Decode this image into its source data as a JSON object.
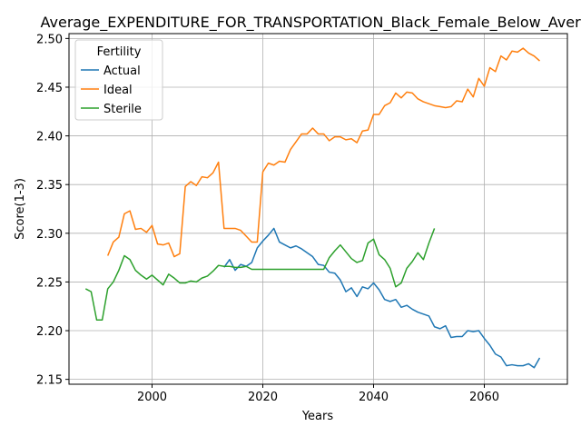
{
  "chart_data": {
    "type": "line",
    "title": "Average_EXPENDITURE_FOR_TRANSPORTATION_Black_Female_Below_Average",
    "xlabel": "Years",
    "ylabel": "Score(1-3)",
    "xlim": [
      1985,
      2075
    ],
    "ylim": [
      2.145,
      2.505
    ],
    "xticks": [
      2000,
      2020,
      2040,
      2060
    ],
    "yticks": [
      2.15,
      2.2,
      2.25,
      2.3,
      2.35,
      2.4,
      2.45,
      2.5
    ],
    "ytick_labels": [
      "2.15",
      "2.20",
      "2.25",
      "2.30",
      "2.35",
      "2.40",
      "2.45",
      "2.50"
    ],
    "grid": true,
    "legend": {
      "title": "Fertility",
      "placement": "upper-left"
    },
    "series": [
      {
        "name": "Actual",
        "color": "#1f77b4",
        "x": [
          2013,
          2014,
          2015,
          2016,
          2017,
          2018,
          2019,
          2020,
          2021,
          2022,
          2023,
          2024,
          2025,
          2026,
          2027,
          2028,
          2029,
          2030,
          2031,
          2032,
          2033,
          2034,
          2035,
          2036,
          2037,
          2038,
          2039,
          2040,
          2041,
          2042,
          2043,
          2044,
          2045,
          2046,
          2047,
          2048,
          2049,
          2050,
          2051,
          2052,
          2053,
          2054,
          2055,
          2056,
          2057,
          2058,
          2059,
          2060,
          2061,
          2062,
          2063,
          2064,
          2065,
          2066,
          2067,
          2068,
          2069,
          2070
        ],
        "values": [
          2.265,
          2.273,
          2.262,
          2.268,
          2.266,
          2.27,
          2.285,
          2.292,
          2.298,
          2.305,
          2.291,
          2.288,
          2.285,
          2.287,
          2.284,
          2.28,
          2.276,
          2.268,
          2.267,
          2.26,
          2.259,
          2.252,
          2.24,
          2.244,
          2.235,
          2.245,
          2.243,
          2.249,
          2.242,
          2.232,
          2.23,
          2.232,
          2.224,
          2.226,
          2.222,
          2.219,
          2.217,
          2.215,
          2.204,
          2.202,
          2.205,
          2.193,
          2.194,
          2.194,
          2.2,
          2.199,
          2.2,
          2.192,
          2.185,
          2.176,
          2.173,
          2.164,
          2.165,
          2.164,
          2.164,
          2.166,
          2.162,
          2.172
        ]
      },
      {
        "name": "Ideal",
        "color": "#ff7f0e",
        "x": [
          1992,
          1993,
          1994,
          1995,
          1996,
          1997,
          1998,
          1999,
          2000,
          2001,
          2002,
          2003,
          2004,
          2005,
          2006,
          2007,
          2008,
          2009,
          2010,
          2011,
          2012,
          2013,
          2014,
          2015,
          2016,
          2017,
          2018,
          2019,
          2020,
          2021,
          2022,
          2023,
          2024,
          2025,
          2026,
          2027,
          2028,
          2029,
          2030,
          2031,
          2032,
          2033,
          2034,
          2035,
          2036,
          2037,
          2038,
          2039,
          2040,
          2041,
          2042,
          2043,
          2044,
          2045,
          2046,
          2047,
          2048,
          2049,
          2050,
          2051,
          2052,
          2053,
          2054,
          2055,
          2056,
          2057,
          2058,
          2059,
          2060,
          2061,
          2062,
          2063,
          2064,
          2065,
          2066,
          2067,
          2068,
          2069,
          2070
        ],
        "values": [
          2.277,
          2.291,
          2.296,
          2.32,
          2.323,
          2.304,
          2.305,
          2.301,
          2.308,
          2.289,
          2.288,
          2.29,
          2.276,
          2.279,
          2.348,
          2.353,
          2.349,
          2.358,
          2.357,
          2.362,
          2.373,
          2.305,
          2.305,
          2.305,
          2.303,
          2.297,
          2.291,
          2.291,
          2.363,
          2.372,
          2.37,
          2.374,
          2.373,
          2.386,
          2.394,
          2.402,
          2.402,
          2.408,
          2.402,
          2.402,
          2.395,
          2.399,
          2.399,
          2.396,
          2.397,
          2.393,
          2.405,
          2.406,
          2.422,
          2.422,
          2.431,
          2.434,
          2.444,
          2.439,
          2.445,
          2.444,
          2.438,
          2.435,
          2.433,
          2.431,
          2.43,
          2.429,
          2.43,
          2.436,
          2.435,
          2.448,
          2.44,
          2.459,
          2.451,
          2.47,
          2.466,
          2.482,
          2.478,
          2.487,
          2.486,
          2.49,
          2.485,
          2.482,
          2.477
        ]
      },
      {
        "name": "Sterile",
        "color": "#2ca02c",
        "x": [
          1988,
          1989,
          1990,
          1991,
          1992,
          1993,
          1994,
          1995,
          1996,
          1997,
          1998,
          1999,
          2000,
          2001,
          2002,
          2003,
          2004,
          2005,
          2006,
          2007,
          2008,
          2009,
          2010,
          2011,
          2012,
          2013,
          2014,
          2015,
          2016,
          2017,
          2018,
          2019,
          2020,
          2021,
          2022,
          2023,
          2024,
          2025,
          2026,
          2027,
          2028,
          2029,
          2030,
          2031,
          2032,
          2033,
          2034,
          2035,
          2036,
          2037,
          2038,
          2039,
          2040,
          2041,
          2042,
          2043,
          2044,
          2045,
          2046,
          2047,
          2048,
          2049,
          2050,
          2051
        ],
        "values": [
          2.243,
          2.24,
          2.211,
          2.211,
          2.243,
          2.25,
          2.262,
          2.277,
          2.273,
          2.262,
          2.257,
          2.253,
          2.257,
          2.252,
          2.247,
          2.258,
          2.254,
          2.249,
          2.249,
          2.251,
          2.25,
          2.254,
          2.256,
          2.261,
          2.267,
          2.266,
          2.266,
          2.265,
          2.265,
          2.266,
          2.263,
          2.263,
          2.263,
          2.263,
          2.263,
          2.263,
          2.263,
          2.263,
          2.263,
          2.263,
          2.263,
          2.263,
          2.263,
          2.263,
          2.275,
          2.282,
          2.288,
          2.281,
          2.274,
          2.27,
          2.272,
          2.29,
          2.294,
          2.278,
          2.273,
          2.264,
          2.245,
          2.249,
          2.264,
          2.271,
          2.28,
          2.273,
          2.29,
          2.305
        ]
      }
    ]
  }
}
